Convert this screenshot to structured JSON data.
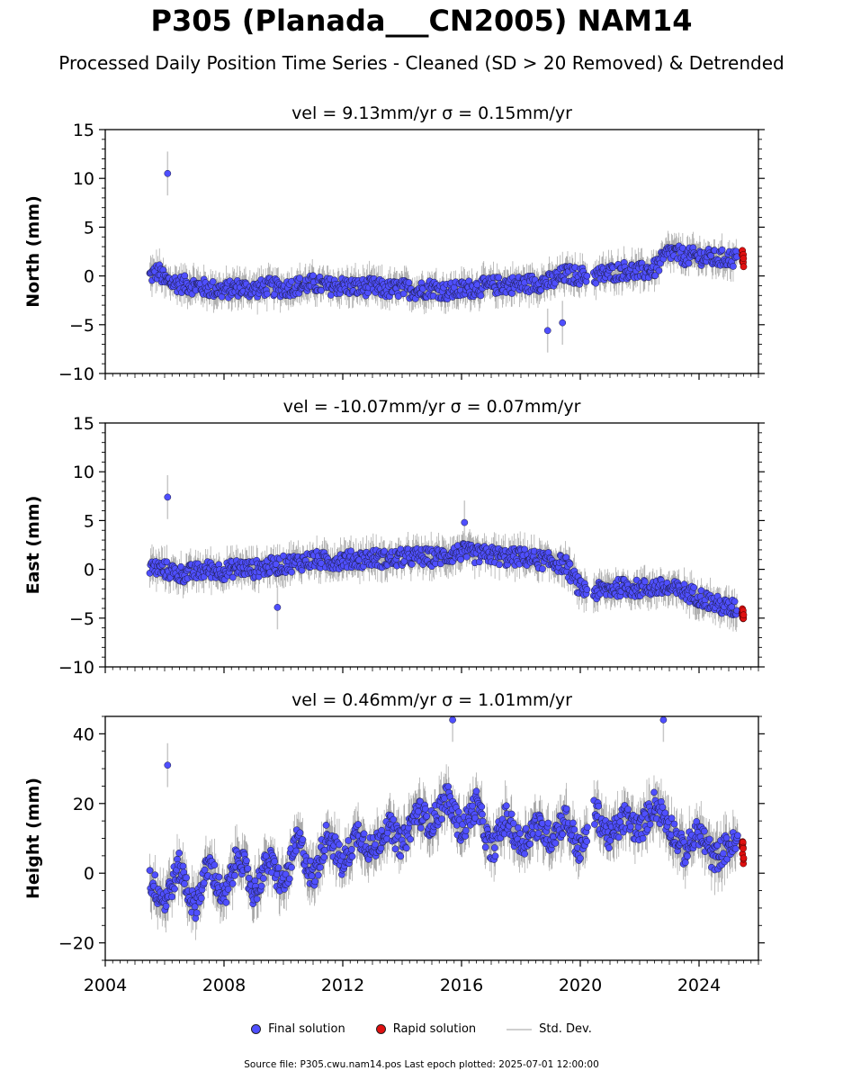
{
  "title": "P305 (Planada___CN2005) NAM14",
  "subtitle": "Processed Daily Position Time Series - Cleaned (SD > 20 Removed) & Detrended",
  "legend": {
    "final": "Final solution",
    "rapid": "Rapid solution",
    "stddev": "Std. Dev."
  },
  "footer": "Source file: P305.cwu.nam14.pos  Last epoch plotted: 2025-07-01 12:00:00",
  "colors": {
    "final": "#4f4fff",
    "rapid": "#e01010",
    "stddev": "#c8c8c8",
    "band": "#555555"
  },
  "chart_data": [
    {
      "type": "scatter",
      "title": "vel = 9.13mm/yr   σ = 0.15mm/yr",
      "ylabel": "North (mm)",
      "xlim": [
        2004,
        2026
      ],
      "ylim": [
        -10,
        15
      ],
      "yticks": [
        -10,
        -5,
        0,
        5,
        10,
        15
      ],
      "xticks": [
        2004,
        2008,
        2012,
        2016,
        2020,
        2024
      ],
      "show_xticklabels": false,
      "series": [
        {
          "name": "Final solution",
          "x": [
            2005.5,
            2005.8,
            2006.0,
            2006.5,
            2007.0,
            2007.5,
            2008.0,
            2008.5,
            2009.0,
            2009.5,
            2010.0,
            2010.5,
            2011.0,
            2011.5,
            2012.0,
            2012.5,
            2013.0,
            2013.5,
            2014.0,
            2014.5,
            2015.0,
            2015.5,
            2016.0,
            2016.5,
            2017.0,
            2017.5,
            2018.0,
            2018.5,
            2019.0,
            2019.5,
            2020.0,
            2020.5,
            2021.0,
            2021.5,
            2022.0,
            2022.5,
            2023.0,
            2023.5,
            2024.0,
            2024.5,
            2025.0
          ],
          "y": [
            0.0,
            0.5,
            -0.5,
            -0.8,
            -1.0,
            -1.3,
            -1.5,
            -1.2,
            -1.4,
            -1.1,
            -1.3,
            -1.0,
            -0.8,
            -1.1,
            -1.0,
            -1.2,
            -1.1,
            -1.4,
            -1.3,
            -1.5,
            -1.2,
            -1.6,
            -1.4,
            -1.2,
            -1.0,
            -0.9,
            -0.9,
            -0.7,
            -0.6,
            0.2,
            0.0,
            0.0,
            0.3,
            0.6,
            0.4,
            0.7,
            2.5,
            2.0,
            2.0,
            1.8,
            1.8
          ]
        },
        {
          "name": "Rapid solution",
          "x": [
            2025.45,
            2025.5
          ],
          "y": [
            2.2,
            1.5
          ]
        }
      ],
      "outliers": [
        {
          "x": 2006.1,
          "y": 10.5
        },
        {
          "x": 2018.9,
          "y": -5.6
        },
        {
          "x": 2019.4,
          "y": -4.8
        }
      ]
    },
    {
      "type": "scatter",
      "title": "vel = -10.07mm/yr   σ = 0.07mm/yr",
      "ylabel": "East (mm)",
      "xlim": [
        2004,
        2026
      ],
      "ylim": [
        -10,
        15
      ],
      "yticks": [
        -10,
        -5,
        0,
        5,
        10,
        15
      ],
      "xticks": [
        2004,
        2008,
        2012,
        2016,
        2020,
        2024
      ],
      "show_xticklabels": false,
      "series": [
        {
          "name": "Final solution",
          "x": [
            2005.5,
            2006.0,
            2006.5,
            2007.0,
            2007.5,
            2008.0,
            2008.5,
            2009.0,
            2009.5,
            2010.0,
            2010.5,
            2011.0,
            2011.5,
            2012.0,
            2012.5,
            2013.0,
            2013.5,
            2014.0,
            2014.5,
            2015.0,
            2015.5,
            2016.0,
            2016.5,
            2017.0,
            2017.5,
            2018.0,
            2018.5,
            2019.0,
            2019.5,
            2020.0,
            2020.5,
            2021.0,
            2021.5,
            2022.0,
            2022.5,
            2023.0,
            2023.5,
            2024.0,
            2024.5,
            2025.0
          ],
          "y": [
            0.2,
            0.0,
            -0.5,
            -0.3,
            0.0,
            -0.2,
            0.2,
            0.0,
            0.3,
            0.5,
            0.7,
            1.0,
            0.8,
            1.0,
            1.0,
            1.2,
            1.0,
            1.2,
            1.3,
            1.2,
            1.4,
            1.8,
            1.5,
            1.5,
            1.2,
            1.3,
            1.0,
            0.8,
            0.5,
            -2.0,
            -2.3,
            -2.0,
            -1.8,
            -2.0,
            -1.8,
            -2.0,
            -2.3,
            -2.8,
            -3.5,
            -4.0
          ]
        },
        {
          "name": "Rapid solution",
          "x": [
            2025.45,
            2025.5
          ],
          "y": [
            -4.2,
            -4.8
          ]
        }
      ],
      "outliers": [
        {
          "x": 2006.1,
          "y": 7.4
        },
        {
          "x": 2009.8,
          "y": -3.9
        },
        {
          "x": 2016.1,
          "y": 4.8
        }
      ]
    },
    {
      "type": "scatter",
      "title": "vel = 0.46mm/yr   σ = 1.01mm/yr",
      "ylabel": "Height (mm)",
      "xlim": [
        2004,
        2026
      ],
      "ylim": [
        -25,
        45
      ],
      "yticks": [
        -20,
        0,
        20,
        40
      ],
      "xticks": [
        2004,
        2008,
        2012,
        2016,
        2020,
        2024
      ],
      "show_xticklabels": true,
      "series": [
        {
          "name": "Final solution",
          "x": [
            2005.5,
            2006.0,
            2006.5,
            2007.0,
            2007.5,
            2008.0,
            2008.5,
            2009.0,
            2009.5,
            2010.0,
            2010.5,
            2011.0,
            2011.5,
            2012.0,
            2012.5,
            2013.0,
            2013.5,
            2014.0,
            2014.5,
            2015.0,
            2015.5,
            2016.0,
            2016.5,
            2017.0,
            2017.5,
            2018.0,
            2018.5,
            2019.0,
            2019.5,
            2020.0,
            2020.5,
            2021.0,
            2021.5,
            2022.0,
            2022.5,
            2023.0,
            2023.5,
            2024.0,
            2024.5,
            2025.0
          ],
          "y": [
            -2,
            -8,
            2,
            -10,
            3,
            -8,
            6,
            -6,
            4,
            -4,
            10,
            -2,
            12,
            2,
            12,
            6,
            14,
            8,
            18,
            14,
            22,
            12,
            20,
            6,
            16,
            8,
            14,
            10,
            16,
            6,
            18,
            10,
            16,
            12,
            20,
            14,
            6,
            12,
            4,
            8
          ]
        },
        {
          "name": "Rapid solution",
          "x": [
            2025.45,
            2025.5
          ],
          "y": [
            9,
            5
          ]
        }
      ],
      "outliers": [
        {
          "x": 2006.1,
          "y": 31
        },
        {
          "x": 2015.7,
          "y": 44
        },
        {
          "x": 2022.8,
          "y": 44
        }
      ]
    }
  ]
}
